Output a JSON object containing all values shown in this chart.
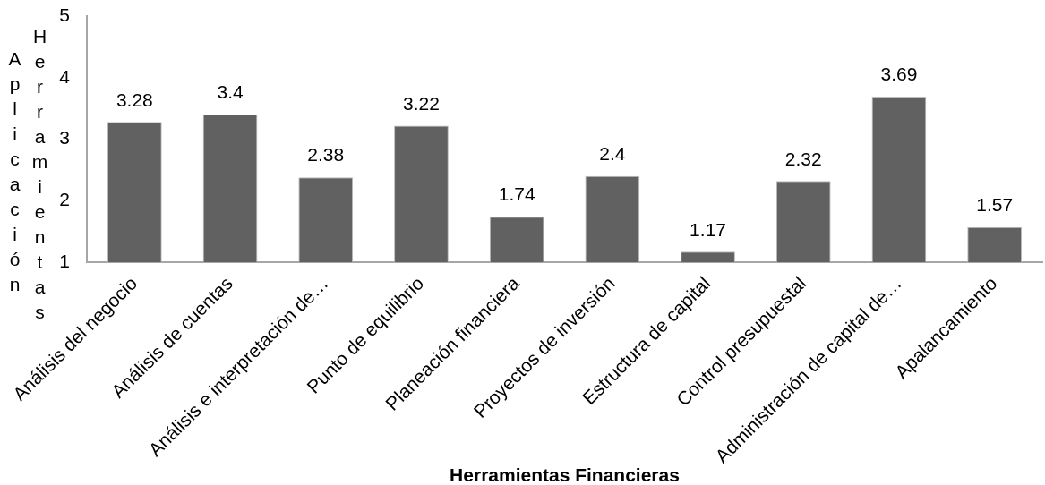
{
  "chart_data": {
    "type": "bar",
    "xlabel": "Herramientas Financieras",
    "ylabel": "Aplicación Herramientas",
    "categories": [
      "Análisis del negocio",
      "Análisis de cuentas",
      "Análisis e interpretación de…",
      "Punto de equilibrio",
      "Planeación financiera",
      "Proyectos de inversión",
      "Estructura de capital",
      "Control presupuestal",
      "Administración de capital de…",
      "Apalancamiento"
    ],
    "values": [
      3.28,
      3.4,
      2.38,
      3.22,
      1.74,
      2.4,
      1.17,
      2.32,
      3.69,
      1.57
    ],
    "color": "#616161",
    "ylim": [
      1,
      5
    ],
    "yticks": [
      1,
      2,
      3,
      4,
      5
    ],
    "data_labels": true
  }
}
